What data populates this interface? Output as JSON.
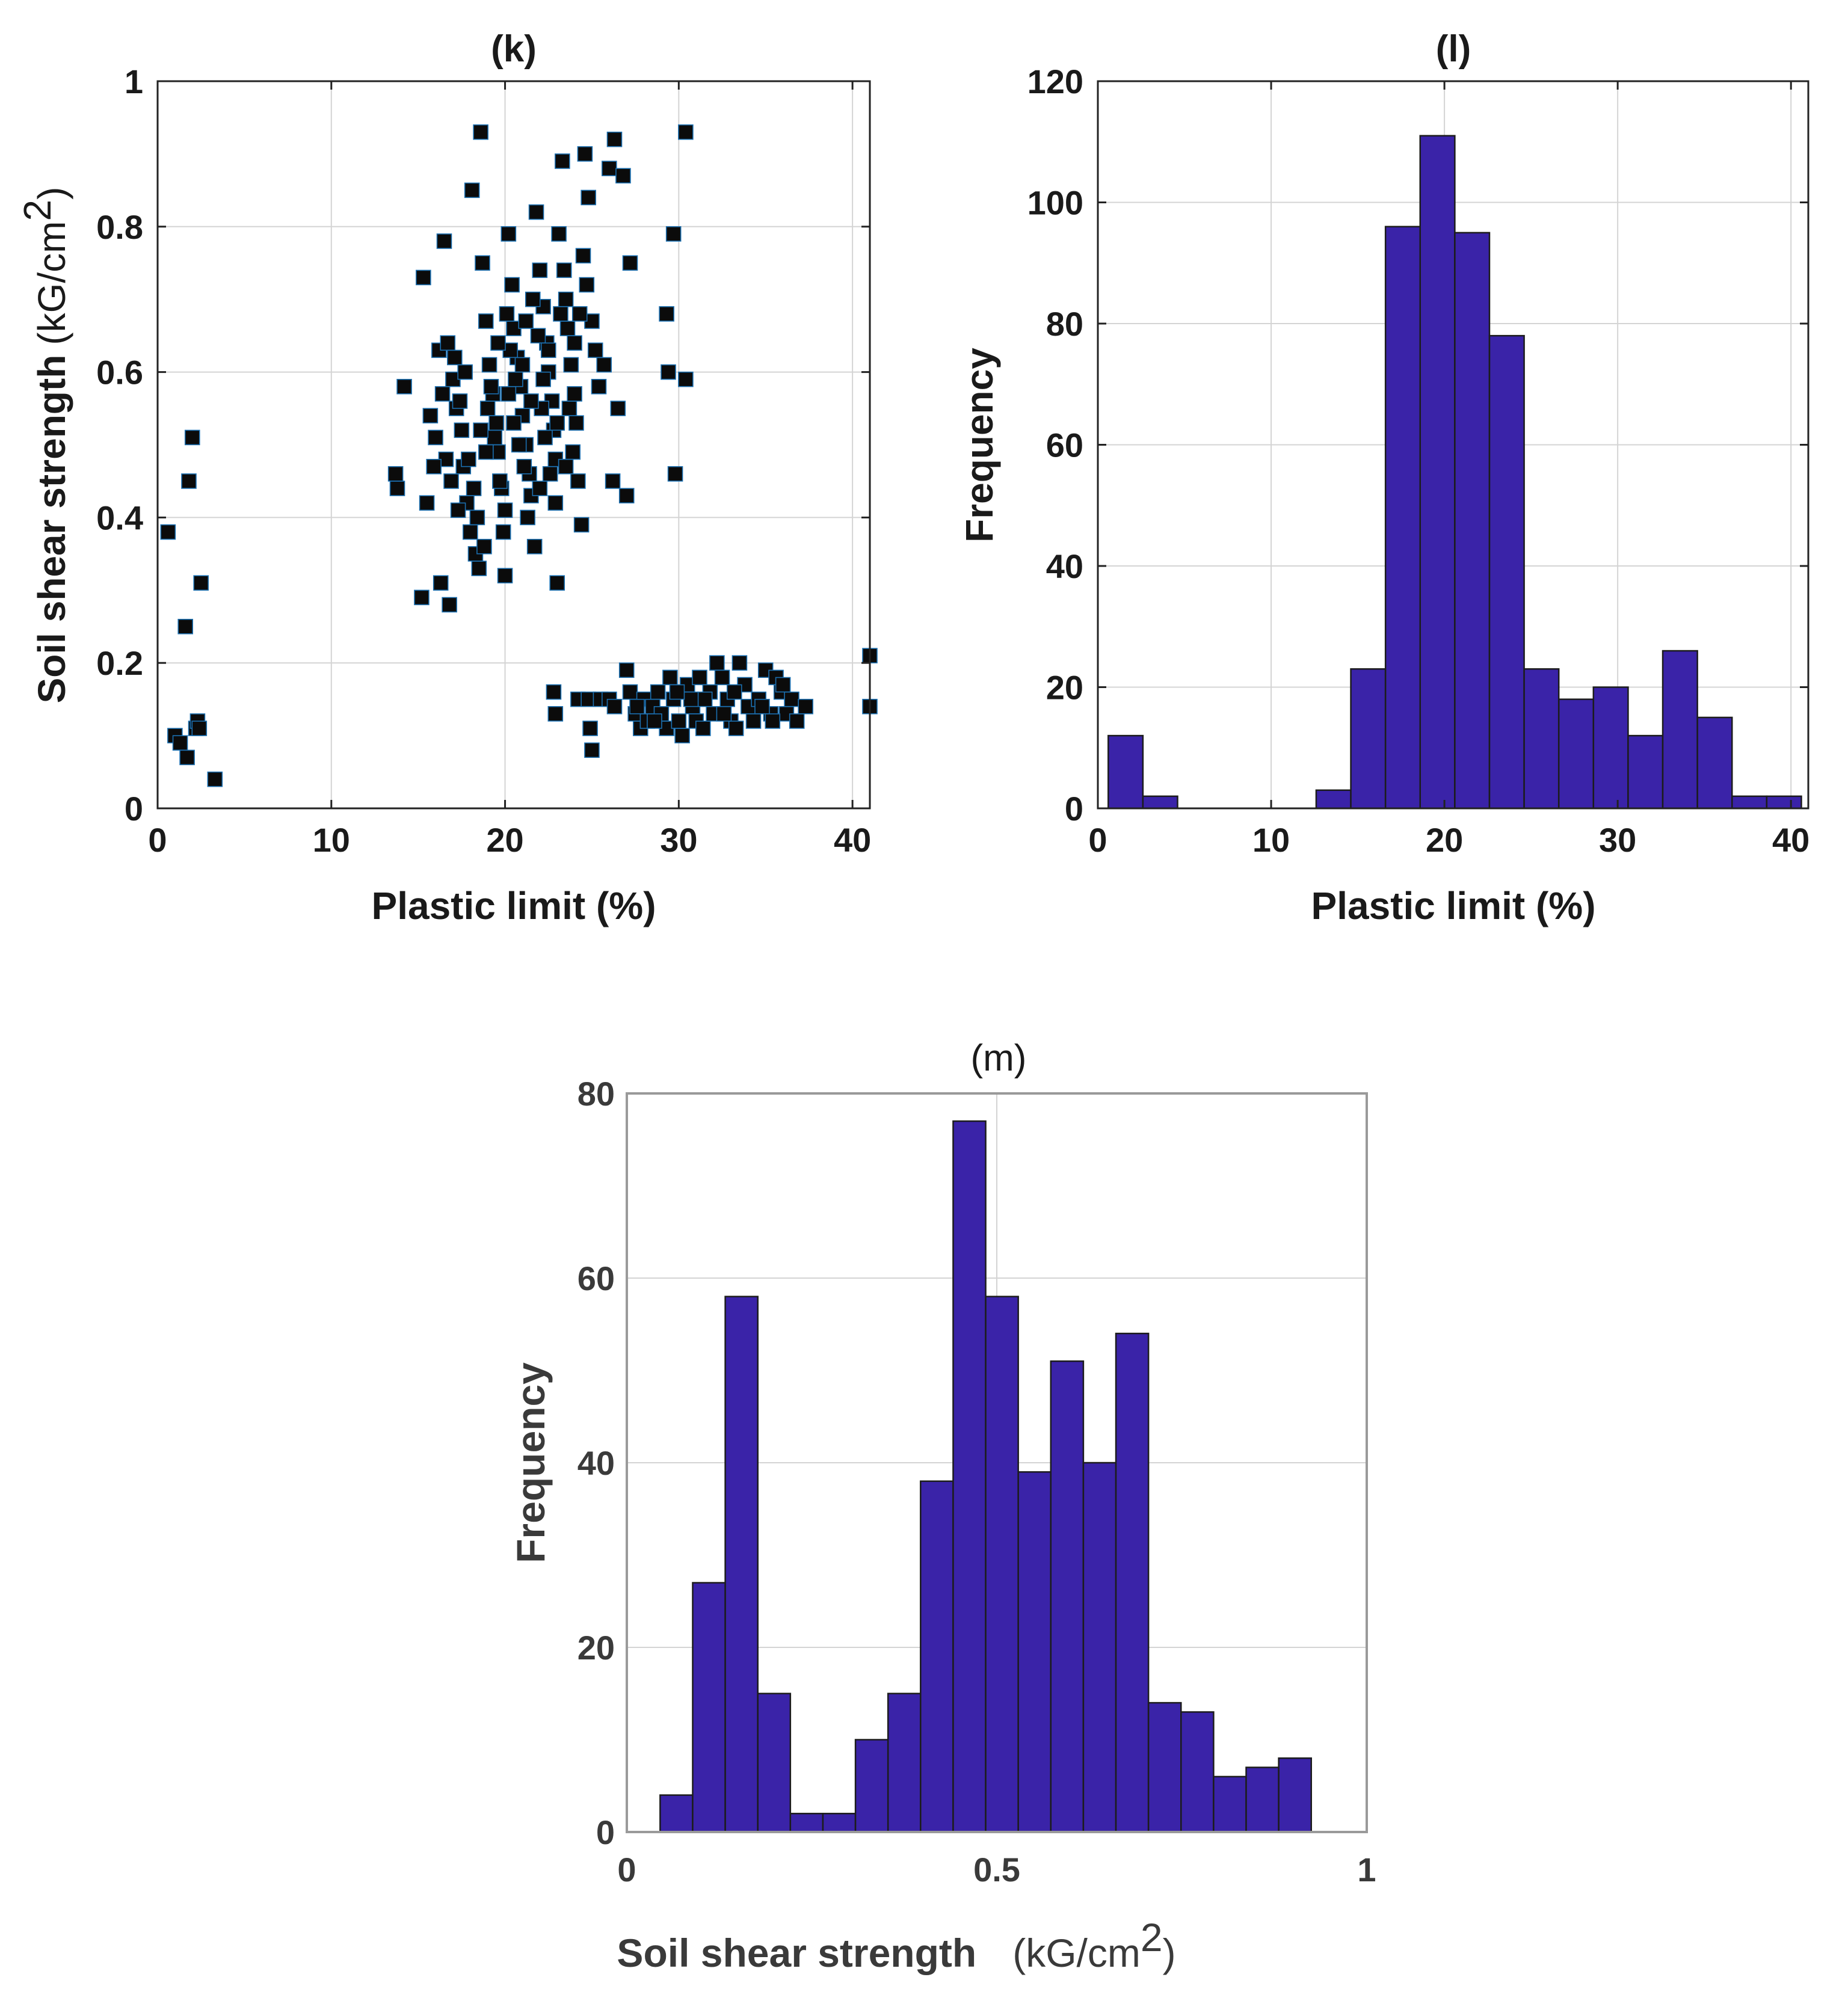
{
  "colors": {
    "bar_fill": "#3a23a8",
    "marker_fill": "#0b0b0b",
    "marker_edge": "#1b6fb0",
    "grid": "#d4d4d4"
  },
  "chart_data": [
    {
      "id": "k",
      "type": "scatter",
      "title": "(k)",
      "xlabel": "Plastic limit (%)",
      "ylabel": "Soil shear strength",
      "ylabel_unit_a": "(kG/cm",
      "ylabel_unit_sup": "2",
      "ylabel_unit_b": ")",
      "xlim": [
        0,
        41
      ],
      "ylim": [
        0,
        1
      ],
      "xticks": [
        0,
        10,
        20,
        30,
        40
      ],
      "yticks": [
        0,
        0.2,
        0.4,
        0.6,
        0.8,
        1
      ],
      "ytick_labels": [
        "0",
        "0.2",
        "0.4",
        "0.6",
        "0.8",
        "1"
      ],
      "grid": true,
      "points": [
        [
          0.6,
          0.38
        ],
        [
          1.0,
          0.1
        ],
        [
          1.3,
          0.09
        ],
        [
          1.6,
          0.25
        ],
        [
          1.8,
          0.45
        ],
        [
          2.0,
          0.51
        ],
        [
          2.2,
          0.11
        ],
        [
          2.3,
          0.12
        ],
        [
          2.5,
          0.31
        ],
        [
          2.4,
          0.11
        ],
        [
          1.7,
          0.07
        ],
        [
          3.3,
          0.04
        ],
        [
          13.7,
          0.46
        ],
        [
          13.8,
          0.44
        ],
        [
          14.2,
          0.58
        ],
        [
          15.2,
          0.29
        ],
        [
          15.3,
          0.73
        ],
        [
          15.5,
          0.42
        ],
        [
          16.0,
          0.51
        ],
        [
          16.3,
          0.31
        ],
        [
          16.5,
          0.78
        ],
        [
          16.8,
          0.28
        ],
        [
          16.2,
          0.63
        ],
        [
          16.7,
          0.64
        ],
        [
          17.0,
          0.59
        ],
        [
          17.2,
          0.55
        ],
        [
          17.5,
          0.52
        ],
        [
          17.6,
          0.47
        ],
        [
          17.8,
          0.42
        ],
        [
          18.0,
          0.38
        ],
        [
          18.1,
          0.85
        ],
        [
          18.3,
          0.35
        ],
        [
          18.5,
          0.33
        ],
        [
          18.6,
          0.93
        ],
        [
          18.7,
          0.75
        ],
        [
          18.9,
          0.67
        ],
        [
          19.1,
          0.61
        ],
        [
          19.3,
          0.57
        ],
        [
          19.5,
          0.53
        ],
        [
          19.6,
          0.49
        ],
        [
          19.8,
          0.44
        ],
        [
          20.0,
          0.41
        ],
        [
          20.0,
          0.32
        ],
        [
          20.2,
          0.79
        ],
        [
          20.4,
          0.72
        ],
        [
          20.5,
          0.66
        ],
        [
          20.7,
          0.62
        ],
        [
          20.9,
          0.58
        ],
        [
          21.0,
          0.54
        ],
        [
          21.2,
          0.5
        ],
        [
          21.4,
          0.46
        ],
        [
          21.5,
          0.43
        ],
        [
          21.7,
          0.36
        ],
        [
          21.8,
          0.82
        ],
        [
          22.0,
          0.74
        ],
        [
          22.2,
          0.69
        ],
        [
          22.4,
          0.64
        ],
        [
          22.5,
          0.6
        ],
        [
          22.7,
          0.56
        ],
        [
          22.8,
          0.52
        ],
        [
          22.9,
          0.48
        ],
        [
          23.0,
          0.31
        ],
        [
          23.1,
          0.79
        ],
        [
          23.3,
          0.89
        ],
        [
          23.5,
          0.7
        ],
        [
          23.6,
          0.66
        ],
        [
          23.8,
          0.61
        ],
        [
          24.0,
          0.57
        ],
        [
          24.1,
          0.53
        ],
        [
          24.2,
          0.45
        ],
        [
          24.4,
          0.39
        ],
        [
          24.5,
          0.76
        ],
        [
          24.6,
          0.9
        ],
        [
          24.8,
          0.84
        ],
        [
          25.0,
          0.67
        ],
        [
          25.2,
          0.63
        ],
        [
          25.4,
          0.58
        ],
        [
          25.7,
          0.61
        ],
        [
          26.0,
          0.88
        ],
        [
          26.3,
          0.92
        ],
        [
          26.5,
          0.55
        ],
        [
          26.8,
          0.87
        ],
        [
          26.2,
          0.45
        ],
        [
          27.0,
          0.43
        ],
        [
          27.2,
          0.75
        ],
        [
          29.3,
          0.68
        ],
        [
          29.4,
          0.6
        ],
        [
          29.7,
          0.79
        ],
        [
          29.8,
          0.46
        ],
        [
          30.4,
          0.93
        ],
        [
          30.4,
          0.59
        ],
        [
          17.1,
          0.62
        ],
        [
          17.4,
          0.56
        ],
        [
          17.9,
          0.48
        ],
        [
          18.2,
          0.44
        ],
        [
          18.4,
          0.4
        ],
        [
          18.8,
          0.36
        ],
        [
          19.0,
          0.55
        ],
        [
          19.4,
          0.51
        ],
        [
          19.7,
          0.45
        ],
        [
          20.1,
          0.68
        ],
        [
          20.3,
          0.63
        ],
        [
          20.6,
          0.59
        ],
        [
          20.8,
          0.5
        ],
        [
          21.1,
          0.47
        ],
        [
          21.3,
          0.4
        ],
        [
          21.6,
          0.7
        ],
        [
          21.9,
          0.65
        ],
        [
          22.1,
          0.55
        ],
        [
          22.3,
          0.51
        ],
        [
          22.6,
          0.46
        ],
        [
          22.9,
          0.42
        ],
        [
          23.2,
          0.68
        ],
        [
          23.4,
          0.74
        ],
        [
          23.7,
          0.55
        ],
        [
          23.9,
          0.49
        ],
        [
          24.3,
          0.68
        ],
        [
          24.7,
          0.72
        ],
        [
          16.6,
          0.48
        ],
        [
          16.9,
          0.45
        ],
        [
          17.3,
          0.41
        ],
        [
          18.6,
          0.52
        ],
        [
          19.2,
          0.58
        ],
        [
          19.9,
          0.38
        ],
        [
          20.5,
          0.53
        ],
        [
          21.0,
          0.61
        ],
        [
          21.5,
          0.56
        ],
        [
          22.0,
          0.44
        ],
        [
          22.5,
          0.63
        ],
        [
          23.0,
          0.53
        ],
        [
          23.5,
          0.47
        ],
        [
          15.7,
          0.54
        ],
        [
          15.9,
          0.47
        ],
        [
          16.4,
          0.57
        ],
        [
          17.7,
          0.6
        ],
        [
          18.9,
          0.49
        ],
        [
          19.6,
          0.64
        ],
        [
          20.2,
          0.57
        ],
        [
          21.2,
          0.67
        ],
        [
          22.2,
          0.59
        ],
        [
          24.0,
          0.64
        ],
        [
          22.8,
          0.16
        ],
        [
          22.9,
          0.13
        ],
        [
          24.2,
          0.15
        ],
        [
          24.8,
          0.15
        ],
        [
          24.9,
          0.11
        ],
        [
          25.0,
          0.08
        ],
        [
          25.5,
          0.15
        ],
        [
          26.0,
          0.15
        ],
        [
          26.3,
          0.14
        ],
        [
          27.0,
          0.19
        ],
        [
          27.2,
          0.16
        ],
        [
          27.5,
          0.13
        ],
        [
          27.8,
          0.11
        ],
        [
          28.0,
          0.15
        ],
        [
          28.2,
          0.12
        ],
        [
          28.5,
          0.14
        ],
        [
          28.8,
          0.16
        ],
        [
          29.0,
          0.13
        ],
        [
          29.3,
          0.11
        ],
        [
          29.5,
          0.18
        ],
        [
          29.7,
          0.15
        ],
        [
          30.0,
          0.12
        ],
        [
          30.2,
          0.1
        ],
        [
          30.5,
          0.17
        ],
        [
          30.8,
          0.14
        ],
        [
          31.0,
          0.12
        ],
        [
          31.4,
          0.11
        ],
        [
          31.8,
          0.16
        ],
        [
          32.0,
          0.13
        ],
        [
          32.2,
          0.2
        ],
        [
          32.5,
          0.18
        ],
        [
          32.8,
          0.15
        ],
        [
          33.0,
          0.12
        ],
        [
          33.3,
          0.11
        ],
        [
          33.5,
          0.2
        ],
        [
          33.8,
          0.17
        ],
        [
          34.0,
          0.14
        ],
        [
          34.3,
          0.12
        ],
        [
          34.6,
          0.15
        ],
        [
          35.0,
          0.19
        ],
        [
          35.3,
          0.13
        ],
        [
          35.6,
          0.18
        ],
        [
          35.9,
          0.16
        ],
        [
          36.2,
          0.13
        ],
        [
          36.5,
          0.15
        ],
        [
          36.8,
          0.12
        ],
        [
          37.3,
          0.14
        ],
        [
          41.0,
          0.21
        ],
        [
          41.0,
          0.14
        ],
        [
          31.5,
          0.15
        ],
        [
          33.2,
          0.16
        ],
        [
          34.8,
          0.14
        ],
        [
          28.6,
          0.12
        ],
        [
          30.7,
          0.15
        ],
        [
          27.6,
          0.14
        ],
        [
          29.9,
          0.16
        ],
        [
          32.6,
          0.13
        ],
        [
          35.4,
          0.12
        ],
        [
          36.0,
          0.17
        ],
        [
          31.2,
          0.18
        ]
      ]
    },
    {
      "id": "l",
      "type": "bar",
      "title": "(l)",
      "xlabel": "Plastic limit (%)",
      "ylabel": "Frequency",
      "xlim": [
        0,
        41
      ],
      "ylim": [
        0,
        120
      ],
      "xticks": [
        0,
        10,
        20,
        30,
        40
      ],
      "yticks": [
        0,
        20,
        40,
        60,
        80,
        100,
        120
      ],
      "grid": true,
      "bin_start": 0.6,
      "bin_width": 2.0,
      "values": [
        12,
        2,
        0,
        0,
        0,
        0,
        3,
        23,
        96,
        111,
        95,
        78,
        23,
        18,
        20,
        12,
        26,
        15,
        2,
        2
      ]
    },
    {
      "id": "m",
      "type": "bar",
      "title": "(m)",
      "xlabel": "Soil shear strength",
      "xlabel_unit_a": "(kG/cm",
      "xlabel_unit_sup": "2",
      "xlabel_unit_b": ")",
      "ylabel": "Frequency",
      "xlim": [
        0,
        1
      ],
      "ylim": [
        0,
        80
      ],
      "xticks": [
        0,
        0.5,
        1
      ],
      "xtick_labels": [
        "0",
        "0.5",
        "1"
      ],
      "yticks": [
        0,
        20,
        40,
        60,
        80
      ],
      "grid": true,
      "bin_start": 0.045,
      "bin_width": 0.044,
      "values": [
        4,
        27,
        58,
        15,
        2,
        2,
        10,
        15,
        38,
        77,
        58,
        39,
        51,
        40,
        54,
        14,
        13,
        6,
        7,
        8
      ]
    }
  ]
}
